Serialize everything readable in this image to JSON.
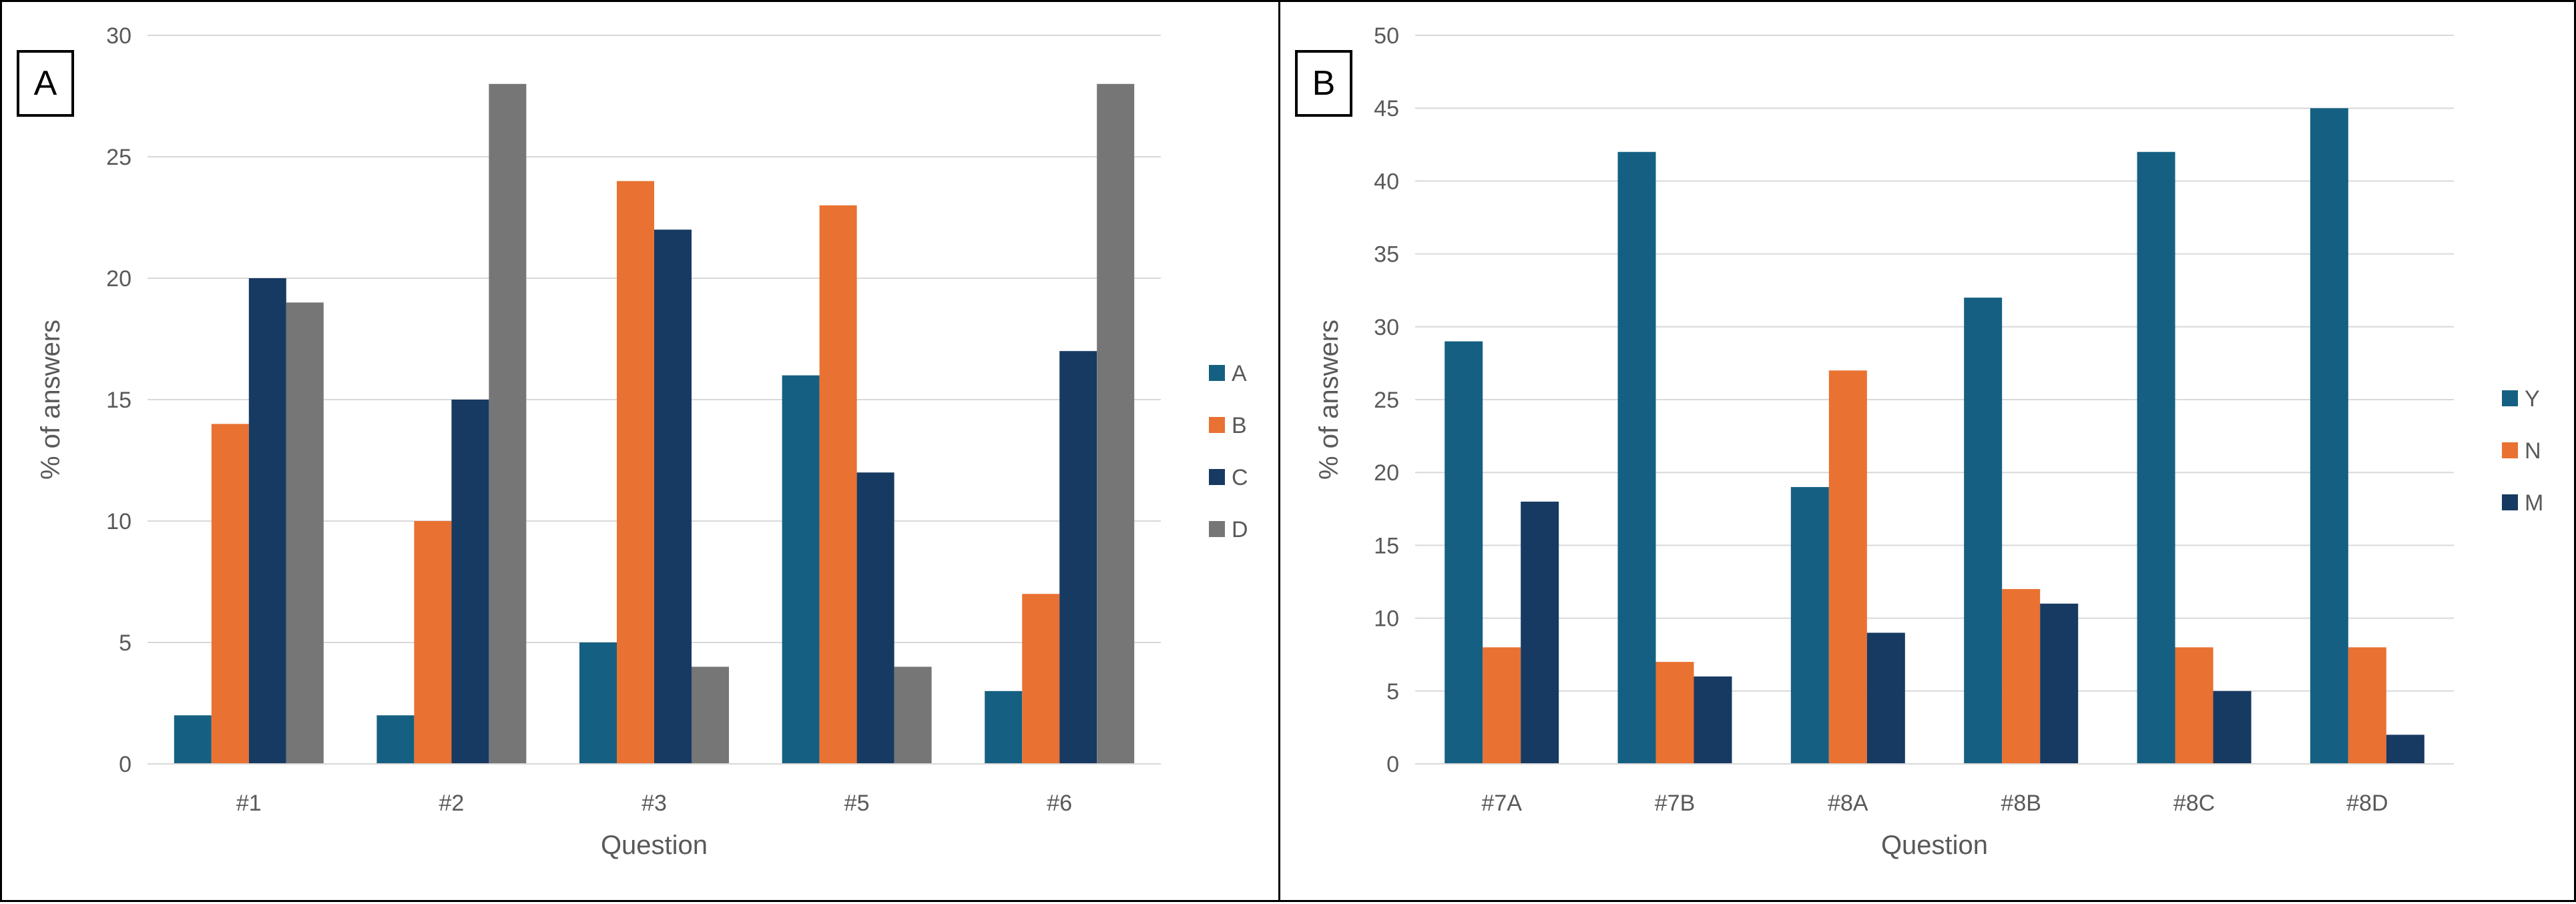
{
  "colors": {
    "series_blue": "#156082",
    "series_orange": "#E97132",
    "series_navy": "#173A62",
    "series_gray": "#767676",
    "gridline": "#D9D9D9",
    "axis_text": "#595959"
  },
  "chart_data": [
    {
      "panel": "A",
      "type": "bar",
      "categories": [
        "#1",
        "#2",
        "#3",
        "#5",
        "#6"
      ],
      "series": [
        {
          "name": "A",
          "values": [
            2,
            2,
            5,
            16,
            3
          ]
        },
        {
          "name": "B",
          "values": [
            14,
            10,
            24,
            23,
            7
          ]
        },
        {
          "name": "C",
          "values": [
            20,
            15,
            22,
            12,
            17
          ]
        },
        {
          "name": "D",
          "values": [
            19,
            28,
            4,
            4,
            28
          ]
        }
      ],
      "xlabel": "Question",
      "ylabel": "% of answers",
      "ylim": [
        0,
        30
      ],
      "yticks": [
        0,
        5,
        10,
        15,
        20,
        25,
        30
      ],
      "grid": true,
      "legend": "right"
    },
    {
      "panel": "B",
      "type": "bar",
      "categories": [
        "#7A",
        "#7B",
        "#8A",
        "#8B",
        "#8C",
        "#8D"
      ],
      "series": [
        {
          "name": "Y",
          "values": [
            29,
            42,
            19,
            32,
            42,
            45
          ]
        },
        {
          "name": "N",
          "values": [
            8,
            7,
            27,
            12,
            8,
            8
          ]
        },
        {
          "name": "M",
          "values": [
            18,
            6,
            9,
            11,
            5,
            2
          ]
        }
      ],
      "xlabel": "Question",
      "ylabel": "% of answers",
      "ylim": [
        0,
        50
      ],
      "yticks": [
        0,
        5,
        10,
        15,
        20,
        25,
        30,
        35,
        40,
        45,
        50
      ],
      "grid": true,
      "legend": "right"
    }
  ]
}
